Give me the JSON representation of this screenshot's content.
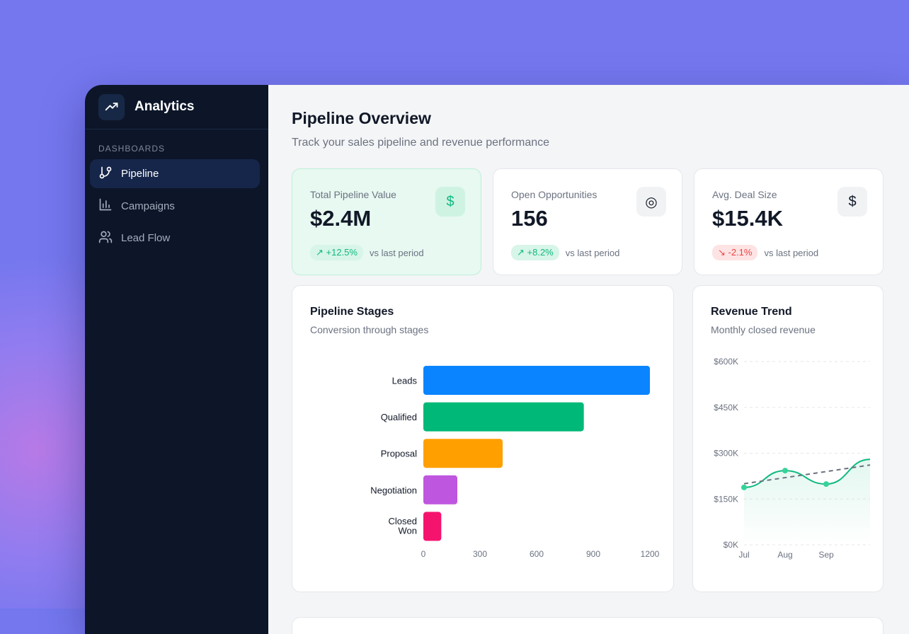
{
  "app": {
    "title": "Analytics",
    "logo_icon": "trending-up-icon"
  },
  "sidebar": {
    "section": "DASHBOARDS",
    "items": [
      {
        "label": "Pipeline",
        "icon": "git-branch-icon",
        "active": true
      },
      {
        "label": "Campaigns",
        "icon": "bar-chart-icon",
        "active": false
      },
      {
        "label": "Lead Flow",
        "icon": "users-icon",
        "active": false
      }
    ]
  },
  "header": {
    "title": "Pipeline Overview",
    "subtitle": "Track your sales pipeline and revenue performance"
  },
  "kpis": [
    {
      "label": "Total Pipeline Value",
      "value": "$2.4M",
      "change": "+12.5%",
      "trend": "up",
      "note": "vs last period",
      "icon": "dollar-icon",
      "glyph": "$"
    },
    {
      "label": "Open Opportunities",
      "value": "156",
      "change": "+8.2%",
      "trend": "up",
      "note": "vs last period",
      "icon": "target-icon",
      "glyph": "◎"
    },
    {
      "label": "Avg. Deal Size",
      "value": "$15.4K",
      "change": "-2.1%",
      "trend": "down",
      "note": "vs last period",
      "icon": "dollar-icon",
      "glyph": "$"
    }
  ],
  "colors": {
    "accent": "#10b981",
    "negative": "#ef4444",
    "sidebar": "#0c1628",
    "background": "#7477ee"
  },
  "chart_data": [
    {
      "type": "bar",
      "orientation": "horizontal",
      "title": "Pipeline Stages",
      "subtitle": "Conversion through stages",
      "categories": [
        "Leads",
        "Qualified",
        "Proposal",
        "Negotiation",
        "Closed Won"
      ],
      "values": [
        1200,
        850,
        420,
        180,
        95
      ],
      "colors": [
        "#0a84ff",
        "#00b877",
        "#ff9f00",
        "#bf56e0",
        "#f5146d"
      ],
      "xticks": [
        0,
        300,
        600,
        900,
        1200
      ],
      "xlim": [
        0,
        1200
      ],
      "grid": false
    },
    {
      "type": "line",
      "title": "Revenue Trend",
      "subtitle": "Monthly closed revenue",
      "categories": [
        "Jul",
        "Aug",
        "Sep"
      ],
      "series": [
        {
          "values": [
            188000,
            243000,
            199000
          ],
          "color": "#10b981"
        },
        {
          "values": [
            200000,
            220000,
            240000
          ],
          "color": "#6b7280",
          "style": "dashed"
        }
      ],
      "yticks": [
        "$0K",
        "$150K",
        "$300K",
        "$450K",
        "$600K"
      ],
      "ylim": [
        0,
        600000
      ],
      "grid": true
    }
  ]
}
